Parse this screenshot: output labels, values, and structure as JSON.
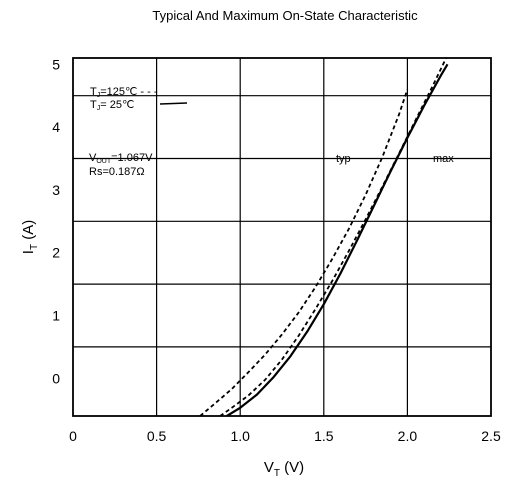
{
  "chart_data": {
    "type": "line",
    "title": "Typical And Maximum On-State Characteristic",
    "xlabel": {
      "main": "V",
      "sub": "T",
      "unit": " (V)"
    },
    "ylabel": {
      "main": "I",
      "sub": "T",
      "unit": " (A)"
    },
    "xlim": [
      0,
      2.5
    ],
    "ylim": [
      -0.6,
      5.1
    ],
    "x_ticks": [
      0,
      0.5,
      1.0,
      1.5,
      2.0,
      2.5
    ],
    "x_tick_labels": [
      "0",
      "0.5",
      "1.0",
      "1.5",
      "2.0",
      "2.5"
    ],
    "y_ticks": [
      0,
      1,
      2,
      3,
      4,
      5
    ],
    "y_tick_labels": [
      "0",
      "1",
      "2",
      "3",
      "4",
      "5"
    ],
    "grid": true,
    "legend": [
      {
        "prefix": "T",
        "sub": "J",
        "text": "=125℃ - - -"
      },
      {
        "prefix": "T",
        "sub": "J",
        "text": "= 25℃"
      }
    ],
    "params": [
      {
        "prefix": "V",
        "sub": "OUT",
        "text": "=1.067V"
      },
      {
        "prefix": "",
        "sub": "",
        "text": "Rs=0.187Ω"
      }
    ],
    "annotations": [
      "typ",
      "max"
    ],
    "series": [
      {
        "style": "dashed",
        "x": [
          0.76,
          0.85,
          0.95,
          1.05,
          1.15,
          1.25,
          1.35,
          1.45,
          1.55,
          1.65,
          1.75,
          1.85,
          1.95,
          2.0
        ],
        "y": [
          -0.6,
          -0.4,
          -0.17,
          0.1,
          0.38,
          0.7,
          1.05,
          1.45,
          1.9,
          2.38,
          2.92,
          3.52,
          4.2,
          4.6
        ]
      },
      {
        "style": "dashed",
        "x": [
          0.88,
          0.95,
          1.05,
          1.15,
          1.25,
          1.35,
          1.45,
          1.55,
          1.65,
          1.75,
          1.85,
          1.95,
          2.05,
          2.15,
          2.25
        ],
        "y": [
          -0.6,
          -0.47,
          -0.27,
          -0.02,
          0.3,
          0.68,
          1.1,
          1.55,
          2.03,
          2.53,
          3.05,
          3.58,
          4.12,
          4.65,
          5.2
        ]
      },
      {
        "style": "solid",
        "x": [
          0.92,
          1.0,
          1.1,
          1.2,
          1.3,
          1.4,
          1.5,
          1.6,
          1.7,
          1.8,
          1.9,
          2.0,
          2.1,
          2.2,
          2.24
        ],
        "y": [
          -0.6,
          -0.47,
          -0.26,
          0.02,
          0.35,
          0.74,
          1.18,
          1.67,
          2.2,
          2.75,
          3.3,
          3.83,
          4.34,
          4.82,
          5.0
        ]
      }
    ]
  }
}
